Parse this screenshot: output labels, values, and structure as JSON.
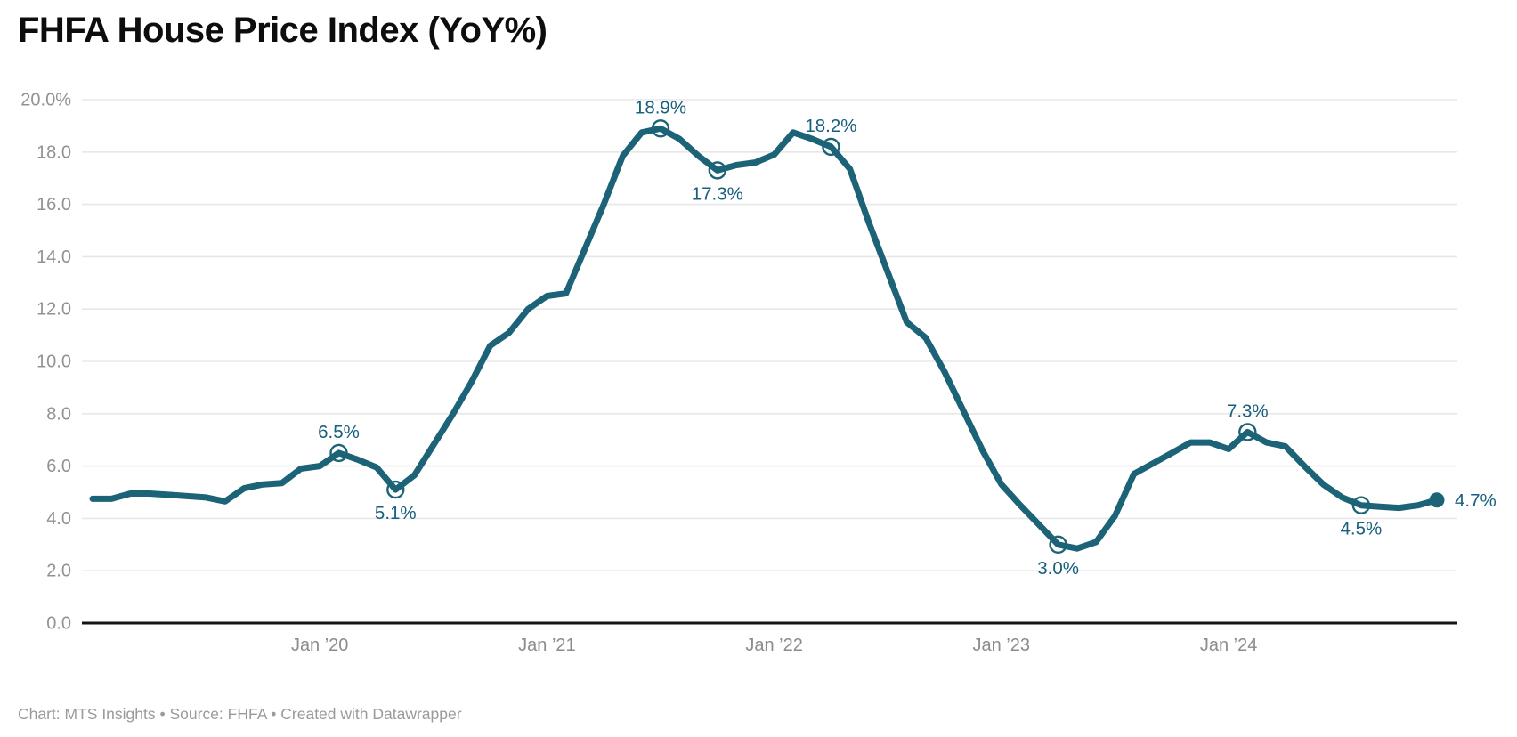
{
  "header": {
    "title": "FHFA House Price Index (YoY%)"
  },
  "footer": {
    "credit": "Chart: MTS Insights • Source: FHFA • Created with Datawrapper"
  },
  "chart_data": {
    "type": "line",
    "title": "FHFA House Price Index (YoY%)",
    "unit": "%",
    "ylim": [
      0,
      20
    ],
    "grid": "horizontal",
    "line_color": "#1C6378",
    "label_color": "#175F7D",
    "axis_text_color": "#929292",
    "xaxis_text_color": "#8c8c8c",
    "grid_color": "#e8e8e8",
    "baseline_color": "#151515",
    "x": [
      "2019-01",
      "2019-02",
      "2019-03",
      "2019-04",
      "2019-05",
      "2019-06",
      "2019-07",
      "2019-08",
      "2019-09",
      "2019-10",
      "2019-11",
      "2019-12",
      "2020-01",
      "2020-02",
      "2020-03",
      "2020-04",
      "2020-05",
      "2020-06",
      "2020-07",
      "2020-08",
      "2020-09",
      "2020-10",
      "2020-11",
      "2020-12",
      "2021-01",
      "2021-02",
      "2021-03",
      "2021-04",
      "2021-05",
      "2021-06",
      "2021-07",
      "2021-08",
      "2021-09",
      "2021-10",
      "2021-11",
      "2021-12",
      "2022-01",
      "2022-02",
      "2022-03",
      "2022-04",
      "2022-05",
      "2022-06",
      "2022-07",
      "2022-08",
      "2022-09",
      "2022-10",
      "2022-11",
      "2022-12",
      "2023-01",
      "2023-02",
      "2023-03",
      "2023-04",
      "2023-05",
      "2023-06",
      "2023-07",
      "2023-08",
      "2023-09",
      "2023-10",
      "2023-11",
      "2023-12",
      "2024-01",
      "2024-02",
      "2024-03",
      "2024-04",
      "2024-05",
      "2024-06",
      "2024-07",
      "2024-08",
      "2024-09",
      "2024-10",
      "2024-11",
      "2024-12"
    ],
    "values": [
      4.75,
      4.75,
      4.95,
      4.95,
      4.9,
      4.85,
      4.8,
      4.65,
      5.15,
      5.3,
      5.35,
      5.9,
      6.0,
      6.5,
      6.25,
      5.95,
      5.1,
      5.65,
      6.8,
      7.95,
      9.2,
      10.6,
      11.1,
      12.0,
      12.5,
      12.6,
      14.3,
      16.0,
      17.85,
      18.75,
      18.9,
      18.5,
      17.85,
      17.3,
      17.5,
      17.6,
      17.9,
      18.75,
      18.5,
      18.2,
      17.35,
      15.3,
      13.4,
      11.5,
      10.9,
      9.6,
      8.1,
      6.6,
      5.3,
      4.5,
      3.75,
      3.0,
      2.85,
      3.1,
      4.1,
      5.7,
      6.1,
      6.5,
      6.9,
      6.9,
      6.65,
      7.3,
      6.9,
      6.75,
      6.0,
      5.3,
      4.8,
      4.5,
      4.45,
      4.4,
      4.5,
      4.7
    ],
    "yticks": [
      {
        "v": 0,
        "label": "0.0"
      },
      {
        "v": 2,
        "label": "2.0"
      },
      {
        "v": 4,
        "label": "4.0"
      },
      {
        "v": 6,
        "label": "6.0"
      },
      {
        "v": 8,
        "label": "8.0"
      },
      {
        "v": 10,
        "label": "10.0"
      },
      {
        "v": 12,
        "label": "12.0"
      },
      {
        "v": 14,
        "label": "14.0"
      },
      {
        "v": 16,
        "label": "16.0"
      },
      {
        "v": 18,
        "label": "18.0"
      },
      {
        "v": 20,
        "label": "20.0%"
      }
    ],
    "xticks": [
      {
        "index": 12,
        "label": "Jan ’20"
      },
      {
        "index": 24,
        "label": "Jan ’21"
      },
      {
        "index": 36,
        "label": "Jan ’22"
      },
      {
        "index": 48,
        "label": "Jan ’23"
      },
      {
        "index": 60,
        "label": "Jan ’24"
      }
    ],
    "annotations": [
      {
        "index": 13,
        "text": "6.5%",
        "position": "above",
        "marker": "open"
      },
      {
        "index": 16,
        "text": "5.1%",
        "position": "below",
        "marker": "open"
      },
      {
        "index": 30,
        "text": "18.9%",
        "position": "above",
        "marker": "open"
      },
      {
        "index": 33,
        "text": "17.3%",
        "position": "below",
        "marker": "open"
      },
      {
        "index": 39,
        "text": "18.2%",
        "position": "above",
        "marker": "open"
      },
      {
        "index": 51,
        "text": "3.0%",
        "position": "below",
        "marker": "open"
      },
      {
        "index": 61,
        "text": "7.3%",
        "position": "above",
        "marker": "open"
      },
      {
        "index": 67,
        "text": "4.5%",
        "position": "below",
        "marker": "open"
      },
      {
        "index": 71,
        "text": "4.7%",
        "position": "right",
        "marker": "filled"
      }
    ]
  }
}
